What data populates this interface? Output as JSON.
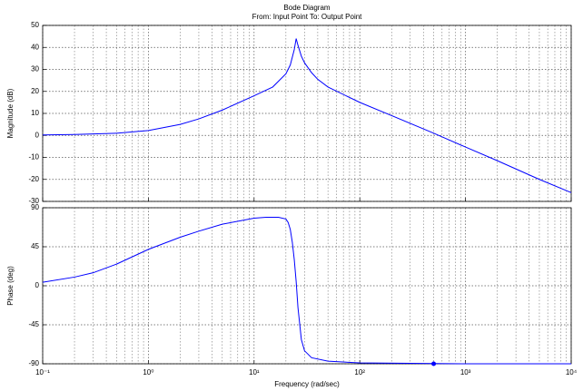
{
  "chart_data": [
    {
      "type": "line",
      "title": "Bode Diagram",
      "subtitle": "From: Input Point  To: Output Point",
      "ylabel": "Magnitude (dB)",
      "xscale": "log",
      "grid": true,
      "minor_grid": true,
      "color": "#0000ff",
      "xlim": [
        0.1,
        10000
      ],
      "xticks": [
        0.1,
        1,
        10,
        100,
        1000,
        10000
      ],
      "xtick_labels": false,
      "ylim": [
        -30,
        50
      ],
      "yticks": [
        -30,
        -20,
        -10,
        0,
        10,
        20,
        30,
        40,
        50
      ],
      "x": [
        0.1,
        0.2,
        0.5,
        1,
        2,
        3,
        5,
        10,
        15,
        20,
        22,
        24,
        25,
        26,
        28,
        30,
        35,
        40,
        50,
        100,
        200,
        500,
        1000,
        2000,
        5000,
        10000
      ],
      "values": [
        0.2,
        0.4,
        1,
        2.2,
        5,
        7.5,
        11.5,
        18,
        22,
        28,
        32,
        39,
        44,
        41,
        36,
        33,
        28.5,
        25.5,
        22,
        15,
        9,
        1,
        -5.3,
        -11.5,
        -20,
        -26
      ]
    },
    {
      "type": "line",
      "ylabel": "Phase (deg)",
      "xlabel": "Frequency  (rad/sec)",
      "xscale": "log",
      "grid": true,
      "minor_grid": true,
      "color": "#0000ff",
      "xlim": [
        0.1,
        10000
      ],
      "xticks": [
        {
          "value": 0.1,
          "label": "10⁻¹"
        },
        {
          "value": 1,
          "label": "10⁰"
        },
        {
          "value": 10,
          "label": "10¹"
        },
        {
          "value": 100,
          "label": "10²"
        },
        {
          "value": 1000,
          "label": "10³"
        },
        {
          "value": 10000,
          "label": "10⁴"
        }
      ],
      "xtick_labels": true,
      "ylim": [
        -90,
        90
      ],
      "yticks": [
        -90,
        -45,
        0,
        45,
        90
      ],
      "x": [
        0.1,
        0.2,
        0.3,
        0.5,
        1,
        2,
        3,
        5,
        10,
        13,
        17,
        20,
        21,
        22,
        23,
        24,
        25,
        26,
        28,
        30,
        35,
        50,
        100,
        1000,
        10000
      ],
      "values": [
        4,
        10,
        15,
        25,
        42,
        56,
        63,
        71,
        78,
        79,
        79,
        77,
        73,
        65,
        50,
        30,
        5,
        -25,
        -62,
        -75,
        -83,
        -87,
        -89,
        -90,
        -90
      ],
      "marker": {
        "x": 500,
        "y": -90
      }
    }
  ]
}
